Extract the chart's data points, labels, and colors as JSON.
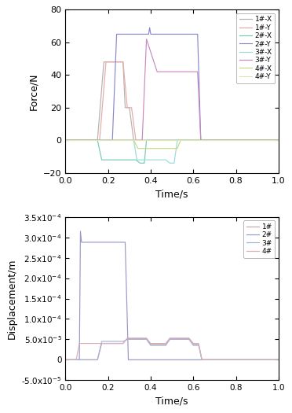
{
  "top": {
    "xlabel": "Time/s",
    "ylabel": "Force/N",
    "xlim": [
      0,
      1.0
    ],
    "ylim": [
      -20,
      80
    ],
    "yticks": [
      -20,
      0,
      20,
      40,
      60,
      80
    ],
    "xticks": [
      0.0,
      0.2,
      0.4,
      0.6,
      0.8,
      1.0
    ],
    "series": [
      {
        "label": "1#-X",
        "color": "#b8b0b0",
        "points": [
          [
            0,
            0
          ],
          [
            0.15,
            0
          ],
          [
            0.18,
            48
          ],
          [
            0.27,
            48
          ],
          [
            0.28,
            20
          ],
          [
            0.3,
            20
          ],
          [
            0.32,
            0
          ],
          [
            1.0,
            0
          ]
        ]
      },
      {
        "label": "1#-Y",
        "color": "#e8a8a8",
        "points": [
          [
            0,
            0
          ],
          [
            0.16,
            0
          ],
          [
            0.19,
            48
          ],
          [
            0.27,
            48
          ],
          [
            0.29,
            20
          ],
          [
            0.31,
            20
          ],
          [
            0.33,
            0
          ],
          [
            1.0,
            0
          ]
        ]
      },
      {
        "label": "2#-X",
        "color": "#78c8b8",
        "points": [
          [
            0,
            0
          ],
          [
            0.15,
            0
          ],
          [
            0.17,
            -12
          ],
          [
            0.33,
            -12
          ],
          [
            0.35,
            -14
          ],
          [
            0.37,
            -14
          ],
          [
            0.38,
            0
          ],
          [
            0.38,
            0
          ],
          [
            1.0,
            0
          ]
        ]
      },
      {
        "label": "2#-Y",
        "color": "#8888cc",
        "points": [
          [
            0,
            0
          ],
          [
            0.22,
            0
          ],
          [
            0.24,
            65
          ],
          [
            0.39,
            65
          ],
          [
            0.395,
            69
          ],
          [
            0.4,
            65
          ],
          [
            0.62,
            65
          ],
          [
            0.635,
            0
          ],
          [
            1.0,
            0
          ]
        ]
      },
      {
        "label": "3#-X",
        "color": "#98dcd8",
        "points": [
          [
            0,
            0
          ],
          [
            0.32,
            0
          ],
          [
            0.335,
            -12
          ],
          [
            0.47,
            -12
          ],
          [
            0.49,
            -14
          ],
          [
            0.51,
            -14
          ],
          [
            0.525,
            0
          ],
          [
            1.0,
            0
          ]
        ]
      },
      {
        "label": "3#-Y",
        "color": "#cc88c0",
        "points": [
          [
            0,
            0
          ],
          [
            0.36,
            0
          ],
          [
            0.38,
            62
          ],
          [
            0.43,
            42
          ],
          [
            0.62,
            42
          ],
          [
            0.635,
            0
          ],
          [
            1.0,
            0
          ]
        ]
      },
      {
        "label": "4#-X",
        "color": "#c8d880",
        "points": [
          [
            0,
            0
          ],
          [
            0.32,
            0
          ],
          [
            0.34,
            -5
          ],
          [
            0.525,
            -5
          ],
          [
            0.54,
            0
          ],
          [
            1.0,
            0
          ]
        ]
      },
      {
        "label": "4#-Y",
        "color": "#dce8b0",
        "points": [
          [
            0,
            0
          ],
          [
            1.0,
            0
          ]
        ]
      }
    ]
  },
  "bottom": {
    "xlabel": "Time/s",
    "ylabel": "Displacement/m",
    "xlim": [
      0,
      1.0
    ],
    "ylim": [
      -5e-05,
      0.00035
    ],
    "xticks": [
      0.0,
      0.2,
      0.4,
      0.6,
      0.8,
      1.0
    ],
    "yticks": [
      -5e-05,
      0,
      5e-05,
      0.0001,
      0.00015,
      0.0002,
      0.00025,
      0.0003,
      0.00035
    ],
    "ytick_labels": [
      "-5.0x10^-5",
      "0",
      "5.0x10^-5",
      "1.0x10^-4",
      "1.5x10^-4",
      "2.0x10^-4",
      "2.5x10^-4",
      "3.0x10^-4",
      "3.5x10^-4"
    ],
    "series": [
      {
        "label": "1#",
        "color": "#c0a8a8",
        "points": [
          [
            0,
            0
          ],
          [
            0.15,
            0
          ],
          [
            0.17,
            4e-05
          ],
          [
            0.27,
            4e-05
          ],
          [
            0.29,
            5.2e-05
          ],
          [
            0.38,
            5.2e-05
          ],
          [
            0.4,
            3.8e-05
          ],
          [
            0.47,
            3.8e-05
          ],
          [
            0.49,
            5.2e-05
          ],
          [
            0.58,
            5.2e-05
          ],
          [
            0.6,
            3.8e-05
          ],
          [
            0.625,
            3.8e-05
          ],
          [
            0.64,
            0
          ],
          [
            1.0,
            0
          ]
        ]
      },
      {
        "label": "2#",
        "color": "#9898c8",
        "points": [
          [
            0,
            0
          ],
          [
            0.065,
            0
          ],
          [
            0.07,
            0.000315
          ],
          [
            0.075,
            0.000288
          ],
          [
            0.28,
            0.000288
          ],
          [
            0.295,
            0
          ],
          [
            1.0,
            0
          ]
        ]
      },
      {
        "label": "3#",
        "color": "#a8b0d8",
        "points": [
          [
            0,
            0
          ],
          [
            0.15,
            0
          ],
          [
            0.17,
            4.5e-05
          ],
          [
            0.27,
            4.5e-05
          ],
          [
            0.29,
            5e-05
          ],
          [
            0.38,
            5e-05
          ],
          [
            0.4,
            3.5e-05
          ],
          [
            0.47,
            3.5e-05
          ],
          [
            0.49,
            5e-05
          ],
          [
            0.58,
            5e-05
          ],
          [
            0.6,
            3.5e-05
          ],
          [
            0.625,
            3.5e-05
          ],
          [
            0.64,
            0
          ],
          [
            1.0,
            0
          ]
        ]
      },
      {
        "label": "4#",
        "color": "#d8b0b8",
        "points": [
          [
            0,
            0
          ],
          [
            0.05,
            0
          ],
          [
            0.065,
            4e-05
          ],
          [
            0.27,
            4e-05
          ],
          [
            0.29,
            5.3e-05
          ],
          [
            0.38,
            5.3e-05
          ],
          [
            0.4,
            4e-05
          ],
          [
            0.47,
            4e-05
          ],
          [
            0.49,
            5.3e-05
          ],
          [
            0.58,
            5.3e-05
          ],
          [
            0.6,
            4e-05
          ],
          [
            0.625,
            4e-05
          ],
          [
            0.64,
            0
          ],
          [
            1.0,
            0
          ]
        ]
      }
    ]
  }
}
